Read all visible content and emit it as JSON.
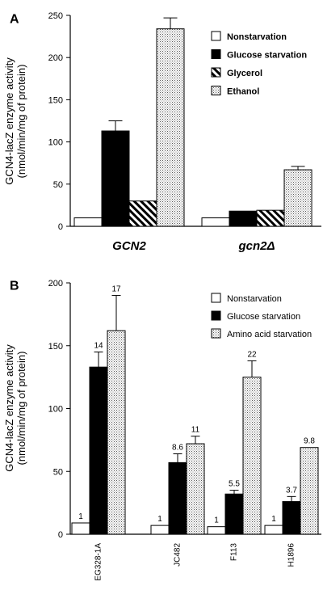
{
  "chart_data": [
    {
      "panel_label": "A",
      "type": "bar",
      "ylabel": [
        "GCN4-lacZ enzyme activity",
        "(nmol/min/mg of protein)"
      ],
      "ylim": [
        0,
        250
      ],
      "yticks": [
        "0",
        "50",
        "100",
        "150",
        "200",
        "250"
      ],
      "categories": [
        "GCN2",
        "gcn2Δ"
      ],
      "category_style": "bold-italic",
      "series": [
        {
          "name": "Nonstarvation",
          "pattern": "white",
          "values": [
            10,
            10
          ],
          "errors": [
            null,
            null
          ]
        },
        {
          "name": "Glucose starvation",
          "pattern": "black",
          "values": [
            113,
            18
          ],
          "errors": [
            12,
            null
          ]
        },
        {
          "name": "Glycerol",
          "pattern": "hatch",
          "values": [
            30,
            19
          ],
          "errors": [
            null,
            null
          ]
        },
        {
          "name": "Ethanol",
          "pattern": "dots",
          "values": [
            234,
            67
          ],
          "errors": [
            13,
            4
          ]
        }
      ],
      "legend_position": "top-right"
    },
    {
      "panel_label": "B",
      "type": "bar",
      "ylabel": [
        "GCN4-lacZ enzyme activity",
        "(nmol/min/mg of protein)"
      ],
      "ylim": [
        0,
        200
      ],
      "yticks": [
        "0",
        "50",
        "100",
        "150",
        "200"
      ],
      "categories": [
        "EG328-1A",
        "JC482",
        "F113",
        "H1896"
      ],
      "series": [
        {
          "name": "Nonstarvation",
          "pattern": "white",
          "values": [
            9,
            7,
            6,
            7
          ],
          "errors": [
            null,
            null,
            null,
            null
          ],
          "labels": [
            "1",
            "1",
            "1",
            "1"
          ]
        },
        {
          "name": "Glucose starvation",
          "pattern": "black",
          "values": [
            133,
            57,
            32,
            26
          ],
          "errors": [
            12,
            7,
            3,
            4
          ],
          "labels": [
            "14",
            "8.6",
            "5.5",
            "3.7"
          ]
        },
        {
          "name": "Amino acid starvation",
          "pattern": "dots",
          "values": [
            162,
            72,
            125,
            69
          ],
          "errors": [
            28,
            6,
            13,
            null
          ],
          "labels": [
            "17",
            "11",
            "22",
            "9.8"
          ]
        }
      ],
      "legend_position": "top-right"
    }
  ]
}
